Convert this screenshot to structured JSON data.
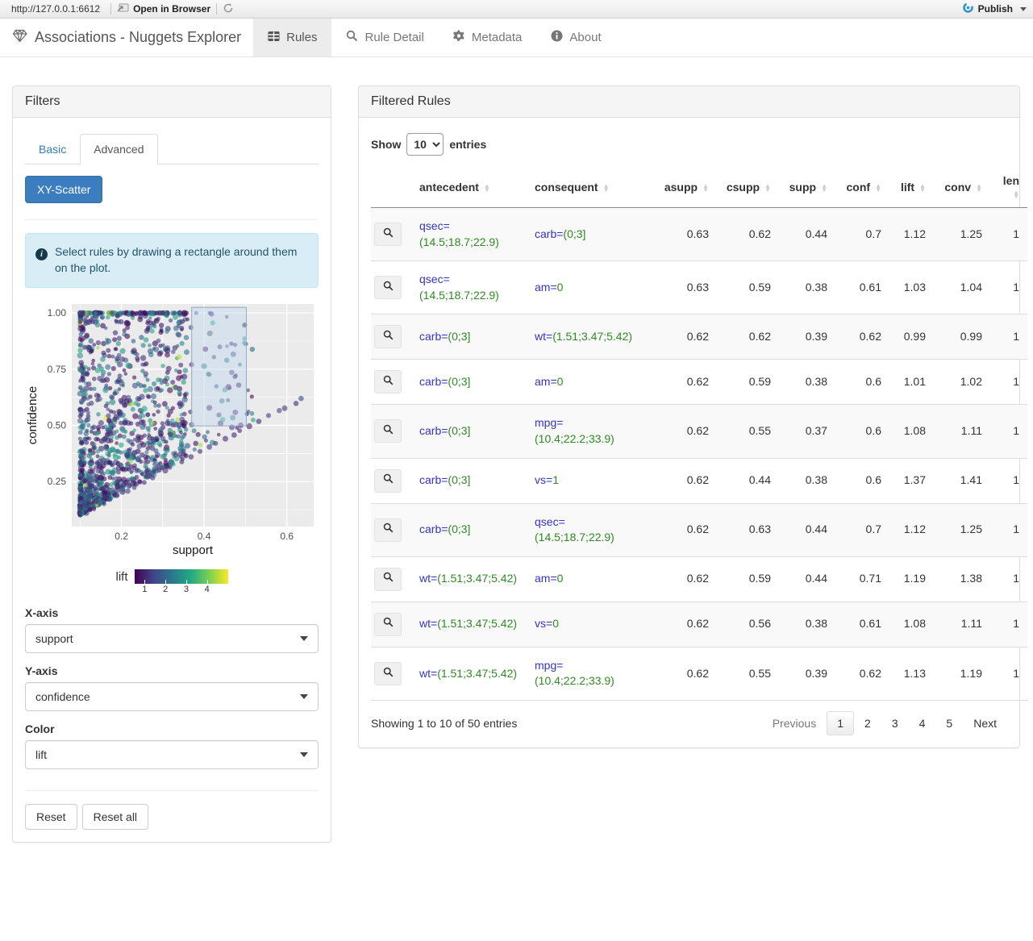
{
  "toolbar": {
    "url": "http://127.0.0.1:6612",
    "open_in_browser": "Open in Browser",
    "publish_label": "Publish",
    "publish_color": "#2f93d6"
  },
  "navbar": {
    "brand": "Associations - Nuggets Explorer",
    "tabs": [
      {
        "label": "Rules",
        "icon": "table-icon",
        "active": true
      },
      {
        "label": "Rule Detail",
        "icon": "search-icon",
        "active": false
      },
      {
        "label": "Metadata",
        "icon": "gear-icon",
        "active": false
      },
      {
        "label": "About",
        "icon": "info-icon",
        "active": false
      }
    ]
  },
  "filters": {
    "title": "Filters",
    "tabs": [
      {
        "label": "Basic",
        "active": false
      },
      {
        "label": "Advanced",
        "active": true
      }
    ],
    "scatter_button": "XY-Scatter",
    "info_text": "Select rules by drawing a rectangle around them on the plot.",
    "x_axis_label": "X-axis",
    "x_axis_value": "support",
    "y_axis_label": "Y-axis",
    "y_axis_value": "confidence",
    "color_label": "Color",
    "color_value": "lift",
    "reset_label": "Reset",
    "reset_all_label": "Reset all"
  },
  "chart_data": {
    "type": "scatter",
    "xlabel": "support",
    "ylabel": "confidence",
    "color_label": "lift",
    "xlim": [
      0.08,
      0.665
    ],
    "ylim": [
      0.05,
      1.04
    ],
    "xticks": [
      0.2,
      0.4,
      0.6
    ],
    "yticks": [
      0.25,
      0.5,
      0.75,
      1.0
    ],
    "xminor": [
      0.1,
      0.3,
      0.5
    ],
    "yminor": [
      0.125,
      0.375,
      0.625,
      0.875
    ],
    "panel_bg": "#EBEBEB",
    "grid_color": "#FFFFFF",
    "point_alpha": 0.6,
    "n_points": 1350,
    "seed": 42,
    "colorbar": {
      "range": [
        0.5,
        5.0
      ],
      "ticks": [
        1,
        2,
        3,
        4
      ],
      "palette": [
        "#440154",
        "#414487",
        "#2a788e",
        "#22a884",
        "#7ad151",
        "#fde725"
      ]
    },
    "selection_rect": {
      "x0": 0.37,
      "x1": 0.502,
      "y0": 0.498,
      "y1": 1.025,
      "fill": "rgba(190,216,238,0.45)",
      "stroke": "#8fa9c2"
    }
  },
  "table_panel": {
    "title": "Filtered Rules",
    "show_label": "Show",
    "entries_label": "entries",
    "page_length": "10",
    "columns": [
      {
        "label": "",
        "numeric": false,
        "sortable": false
      },
      {
        "label": "antecedent",
        "numeric": false,
        "sortable": true
      },
      {
        "label": "consequent",
        "numeric": false,
        "sortable": true
      },
      {
        "label": "asupp",
        "numeric": true,
        "sortable": true
      },
      {
        "label": "csupp",
        "numeric": true,
        "sortable": true
      },
      {
        "label": "supp",
        "numeric": true,
        "sortable": true
      },
      {
        "label": "conf",
        "numeric": true,
        "sortable": true
      },
      {
        "label": "lift",
        "numeric": true,
        "sortable": true
      },
      {
        "label": "conv",
        "numeric": true,
        "sortable": true
      },
      {
        "label": "len",
        "numeric": true,
        "sortable": true
      }
    ],
    "rows": [
      {
        "antecedent": {
          "attr": "qsec=",
          "val": "(14.5;18.7;22.9)"
        },
        "consequent": {
          "attr": "carb=",
          "val": "(0;3]"
        },
        "asupp": "0.63",
        "csupp": "0.62",
        "supp": "0.44",
        "conf": "0.7",
        "lift": "1.12",
        "conv": "1.25",
        "len": "1"
      },
      {
        "antecedent": {
          "attr": "qsec=",
          "val": "(14.5;18.7;22.9)"
        },
        "consequent": {
          "attr": "am=",
          "val": "0"
        },
        "asupp": "0.63",
        "csupp": "0.59",
        "supp": "0.38",
        "conf": "0.61",
        "lift": "1.03",
        "conv": "1.04",
        "len": "1"
      },
      {
        "antecedent": {
          "attr": "carb=",
          "val": "(0;3]"
        },
        "consequent": {
          "attr": "wt=",
          "val": "(1.51;3.47;5.42)"
        },
        "asupp": "0.62",
        "csupp": "0.62",
        "supp": "0.39",
        "conf": "0.62",
        "lift": "0.99",
        "conv": "0.99",
        "len": "1"
      },
      {
        "antecedent": {
          "attr": "carb=",
          "val": "(0;3]"
        },
        "consequent": {
          "attr": "am=",
          "val": "0"
        },
        "asupp": "0.62",
        "csupp": "0.59",
        "supp": "0.38",
        "conf": "0.6",
        "lift": "1.01",
        "conv": "1.02",
        "len": "1"
      },
      {
        "antecedent": {
          "attr": "carb=",
          "val": "(0;3]"
        },
        "consequent": {
          "attr": "mpg=",
          "val": "(10.4;22.2;33.9)"
        },
        "asupp": "0.62",
        "csupp": "0.55",
        "supp": "0.37",
        "conf": "0.6",
        "lift": "1.08",
        "conv": "1.11",
        "len": "1"
      },
      {
        "antecedent": {
          "attr": "carb=",
          "val": "(0;3]"
        },
        "consequent": {
          "attr": "vs=",
          "val": "1"
        },
        "asupp": "0.62",
        "csupp": "0.44",
        "supp": "0.38",
        "conf": "0.6",
        "lift": "1.37",
        "conv": "1.41",
        "len": "1"
      },
      {
        "antecedent": {
          "attr": "carb=",
          "val": "(0;3]"
        },
        "consequent": {
          "attr": "qsec=",
          "val": "(14.5;18.7;22.9)"
        },
        "asupp": "0.62",
        "csupp": "0.63",
        "supp": "0.44",
        "conf": "0.7",
        "lift": "1.12",
        "conv": "1.25",
        "len": "1"
      },
      {
        "antecedent": {
          "attr": "wt=",
          "val": "(1.51;3.47;5.42)"
        },
        "consequent": {
          "attr": "am=",
          "val": "0"
        },
        "asupp": "0.62",
        "csupp": "0.59",
        "supp": "0.44",
        "conf": "0.71",
        "lift": "1.19",
        "conv": "1.38",
        "len": "1"
      },
      {
        "antecedent": {
          "attr": "wt=",
          "val": "(1.51;3.47;5.42)"
        },
        "consequent": {
          "attr": "vs=",
          "val": "0"
        },
        "asupp": "0.62",
        "csupp": "0.56",
        "supp": "0.38",
        "conf": "0.61",
        "lift": "1.08",
        "conv": "1.11",
        "len": "1"
      },
      {
        "antecedent": {
          "attr": "wt=",
          "val": "(1.51;3.47;5.42)"
        },
        "consequent": {
          "attr": "mpg=",
          "val": "(10.4;22.2;33.9)"
        },
        "asupp": "0.62",
        "csupp": "0.55",
        "supp": "0.39",
        "conf": "0.62",
        "lift": "1.13",
        "conv": "1.19",
        "len": "1"
      }
    ],
    "footer": {
      "info": "Showing 1 to 10 of 50 entries",
      "previous": "Previous",
      "pages": [
        "1",
        "2",
        "3",
        "4",
        "5"
      ],
      "current_page": "1",
      "next": "Next"
    }
  }
}
